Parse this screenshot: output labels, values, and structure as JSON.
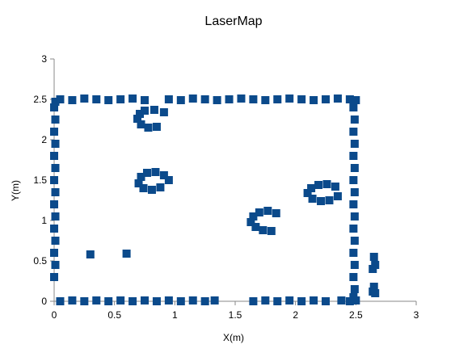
{
  "chart_data": {
    "type": "scatter",
    "title": "LaserMap",
    "xlabel": "X(m)",
    "ylabel": "Y(m)",
    "xlim": [
      0,
      3
    ],
    "ylim": [
      0,
      3
    ],
    "x_ticks": [
      0,
      0.5,
      1,
      1.5,
      2,
      2.5,
      3
    ],
    "y_ticks": [
      0,
      0.5,
      1,
      1.5,
      2,
      2.5,
      3
    ],
    "x_tick_labels": [
      "0",
      "0.5",
      "1",
      "1.5",
      "2",
      "2.5",
      "3"
    ],
    "y_tick_labels": [
      "0",
      "0.5",
      "1",
      "1.5",
      "2",
      "2.5",
      "3"
    ],
    "grid": false,
    "legend": "none",
    "marker_color": "#0b4a8b",
    "marker_shape": "square",
    "series": [
      {
        "points": [
          [
            0.0,
            0.3
          ],
          [
            0.01,
            0.45
          ],
          [
            0.0,
            0.6
          ],
          [
            0.01,
            0.75
          ],
          [
            0.0,
            0.9
          ],
          [
            0.01,
            1.05
          ],
          [
            0.0,
            1.2
          ],
          [
            0.01,
            1.35
          ],
          [
            0.0,
            1.5
          ],
          [
            0.01,
            1.65
          ],
          [
            0.0,
            1.8
          ],
          [
            0.01,
            1.95
          ],
          [
            0.0,
            2.1
          ],
          [
            0.01,
            2.25
          ],
          [
            0.0,
            2.4
          ],
          [
            0.01,
            2.47
          ],
          [
            0.05,
            2.5
          ],
          [
            0.15,
            2.49
          ],
          [
            0.25,
            2.51
          ],
          [
            0.35,
            2.5
          ],
          [
            0.45,
            2.49
          ],
          [
            0.55,
            2.5
          ],
          [
            0.65,
            2.51
          ],
          [
            0.75,
            2.49
          ],
          [
            0.95,
            2.5
          ],
          [
            1.05,
            2.49
          ],
          [
            1.15,
            2.51
          ],
          [
            1.25,
            2.5
          ],
          [
            1.35,
            2.49
          ],
          [
            1.45,
            2.5
          ],
          [
            1.55,
            2.51
          ],
          [
            1.65,
            2.5
          ],
          [
            1.75,
            2.49
          ],
          [
            1.85,
            2.5
          ],
          [
            1.95,
            2.51
          ],
          [
            2.05,
            2.5
          ],
          [
            2.15,
            2.49
          ],
          [
            2.25,
            2.5
          ],
          [
            2.35,
            2.51
          ],
          [
            2.45,
            2.5
          ],
          [
            2.5,
            2.49
          ],
          [
            2.48,
            2.4
          ],
          [
            2.49,
            2.25
          ],
          [
            2.48,
            2.1
          ],
          [
            2.49,
            1.95
          ],
          [
            2.48,
            1.8
          ],
          [
            2.49,
            1.65
          ],
          [
            2.48,
            1.5
          ],
          [
            2.49,
            1.35
          ],
          [
            2.48,
            1.2
          ],
          [
            2.49,
            1.05
          ],
          [
            2.48,
            0.9
          ],
          [
            2.49,
            0.75
          ],
          [
            2.48,
            0.6
          ],
          [
            2.49,
            0.45
          ],
          [
            2.48,
            0.3
          ],
          [
            2.49,
            0.15
          ],
          [
            2.48,
            0.05
          ],
          [
            0.05,
            0.0
          ],
          [
            0.15,
            0.01
          ],
          [
            0.25,
            0.0
          ],
          [
            0.35,
            0.01
          ],
          [
            0.45,
            0.0
          ],
          [
            0.55,
            0.01
          ],
          [
            0.65,
            0.0
          ],
          [
            0.75,
            0.01
          ],
          [
            0.85,
            0.0
          ],
          [
            0.95,
            0.01
          ],
          [
            1.05,
            0.0
          ],
          [
            1.15,
            0.01
          ],
          [
            1.25,
            0.0
          ],
          [
            1.33,
            0.01
          ],
          [
            1.65,
            0.0
          ],
          [
            1.75,
            0.01
          ],
          [
            1.85,
            0.0
          ],
          [
            1.95,
            0.01
          ],
          [
            2.05,
            0.0
          ],
          [
            2.15,
            0.01
          ],
          [
            2.25,
            0.0
          ],
          [
            2.38,
            0.01
          ],
          [
            2.45,
            0.0
          ],
          [
            2.5,
            0.01
          ],
          [
            0.3,
            0.58
          ],
          [
            0.6,
            0.59
          ],
          [
            2.65,
            0.55
          ],
          [
            2.66,
            0.45
          ],
          [
            2.64,
            0.4
          ],
          [
            2.65,
            0.18
          ],
          [
            2.64,
            0.12
          ],
          [
            2.66,
            0.1
          ],
          [
            0.71,
            2.32
          ],
          [
            0.69,
            2.26
          ],
          [
            0.72,
            2.19
          ],
          [
            0.78,
            2.15
          ],
          [
            0.85,
            2.16
          ],
          [
            0.75,
            2.36
          ],
          [
            0.83,
            2.37
          ],
          [
            0.91,
            2.34
          ],
          [
            0.7,
            1.46
          ],
          [
            0.72,
            1.54
          ],
          [
            0.77,
            1.59
          ],
          [
            0.84,
            1.6
          ],
          [
            0.91,
            1.56
          ],
          [
            0.95,
            1.5
          ],
          [
            0.74,
            1.4
          ],
          [
            0.81,
            1.38
          ],
          [
            0.88,
            1.41
          ],
          [
            1.63,
            0.98
          ],
          [
            1.65,
            1.05
          ],
          [
            1.7,
            1.1
          ],
          [
            1.77,
            1.12
          ],
          [
            1.84,
            1.09
          ],
          [
            1.67,
            0.92
          ],
          [
            1.73,
            0.88
          ],
          [
            1.8,
            0.87
          ],
          [
            2.1,
            1.34
          ],
          [
            2.13,
            1.4
          ],
          [
            2.19,
            1.44
          ],
          [
            2.26,
            1.45
          ],
          [
            2.33,
            1.42
          ],
          [
            2.14,
            1.27
          ],
          [
            2.21,
            1.24
          ],
          [
            2.28,
            1.25
          ],
          [
            2.35,
            1.3
          ]
        ]
      }
    ]
  }
}
